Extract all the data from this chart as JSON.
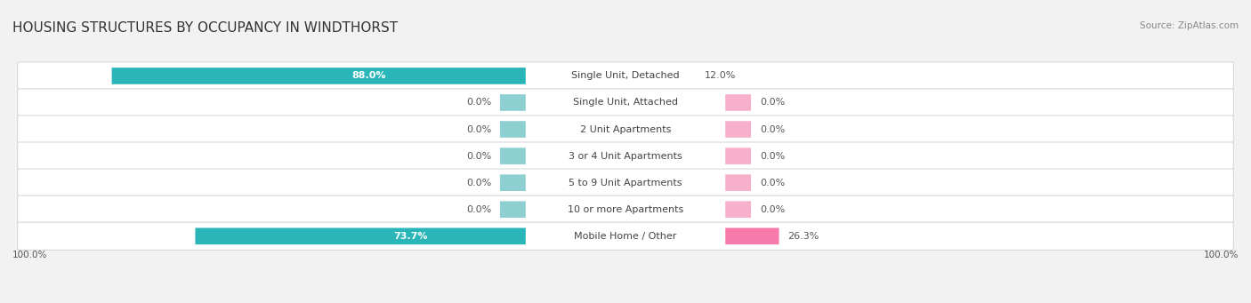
{
  "title": "Housing Structures by Occupancy in Windthorst",
  "source": "Source: ZipAtlas.com",
  "categories": [
    "Single Unit, Detached",
    "Single Unit, Attached",
    "2 Unit Apartments",
    "3 or 4 Unit Apartments",
    "5 to 9 Unit Apartments",
    "10 or more Apartments",
    "Mobile Home / Other"
  ],
  "owner_values": [
    88.0,
    0.0,
    0.0,
    0.0,
    0.0,
    0.0,
    73.7
  ],
  "renter_values": [
    12.0,
    0.0,
    0.0,
    0.0,
    0.0,
    0.0,
    26.3
  ],
  "owner_color": "#2ab5b8",
  "renter_color": "#f87aaa",
  "owner_color_light": "#8ed0d2",
  "renter_color_light": "#f7b0cc",
  "bg_color": "#f2f2f2",
  "row_bg_color": "#ffffff",
  "row_border_color": "#d8d8d8",
  "title_color": "#333333",
  "source_color": "#888888",
  "label_color": "#444444",
  "value_white_color": "#ffffff",
  "value_dark_color": "#555555",
  "title_fontsize": 11,
  "label_fontsize": 8,
  "value_fontsize": 8,
  "source_fontsize": 7.5,
  "axis_label_fontsize": 7.5,
  "max_value": 100.0,
  "stub_size": 5.5,
  "xlim": [
    -105,
    105
  ],
  "bar_height": 0.62
}
